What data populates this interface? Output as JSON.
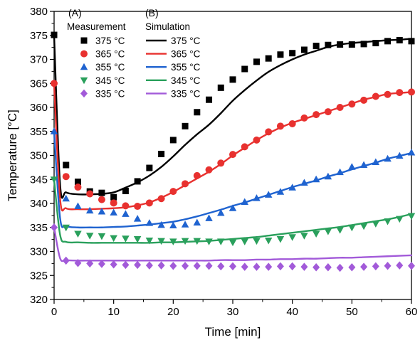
{
  "chart_data": {
    "type": "scatter",
    "xlabel": "Time [min]",
    "ylabel": "Temperature [°C]",
    "xlim": [
      0,
      60
    ],
    "ylim": [
      320,
      380
    ],
    "x_ticks": [
      0,
      10,
      20,
      30,
      40,
      50,
      60
    ],
    "y_ticks": [
      320,
      325,
      330,
      335,
      340,
      345,
      350,
      355,
      360,
      365,
      370,
      375,
      380
    ],
    "grid": false,
    "legend": {
      "placement": "top-left",
      "measurement_header": "Measurement",
      "simulation_header": "Simulation",
      "measurement_panel_label": "(A)",
      "simulation_panel_label": "(B)"
    },
    "series": [
      {
        "name": "375 °C",
        "color": "#000000",
        "marker": "square",
        "measurement": {
          "x": [
            0,
            2,
            4,
            6,
            8,
            10,
            12,
            14,
            16,
            18,
            20,
            22,
            24,
            26,
            28,
            30,
            32,
            34,
            36,
            38,
            40,
            42,
            44,
            46,
            48,
            50,
            52,
            54,
            56,
            58,
            60
          ],
          "y": [
            375.1,
            348,
            344.5,
            342.5,
            342.2,
            341.3,
            342.6,
            344.6,
            347.4,
            350.3,
            353.2,
            356.1,
            359,
            361.6,
            364.1,
            365.8,
            368,
            369.5,
            370.2,
            371,
            371.3,
            372,
            372.8,
            373,
            373.1,
            373.1,
            373.2,
            373.4,
            373.8,
            374,
            373.8
          ]
        },
        "simulation": {
          "x": [
            0,
            1,
            2,
            4,
            6,
            8,
            10,
            12,
            14,
            16,
            18,
            20,
            22,
            24,
            26,
            28,
            30,
            32,
            34,
            36,
            38,
            40,
            42,
            44,
            46,
            48,
            50,
            52,
            54,
            56,
            58,
            60
          ],
          "y": [
            375,
            344,
            342.3,
            341.9,
            341.9,
            342,
            342.3,
            343.3,
            344.4,
            345.8,
            347.6,
            349.8,
            352.2,
            354.4,
            356.4,
            358.8,
            361.4,
            363.6,
            365.6,
            367.4,
            368.8,
            370,
            371,
            371.8,
            372.6,
            373.1,
            373.4,
            373.6,
            373.8,
            374,
            374.1,
            374.3
          ]
        }
      },
      {
        "name": "365 °C",
        "color": "#e8312f",
        "marker": "circle",
        "measurement": {
          "x": [
            0,
            2,
            4,
            6,
            8,
            10,
            12,
            14,
            16,
            18,
            20,
            22,
            24,
            26,
            28,
            30,
            32,
            34,
            36,
            38,
            40,
            42,
            44,
            46,
            48,
            50,
            52,
            54,
            56,
            58,
            60
          ],
          "y": [
            365,
            345.6,
            343.4,
            342,
            340.8,
            340.1,
            339.5,
            339.4,
            340.1,
            341,
            342.5,
            344.1,
            345.8,
            347,
            348.4,
            350.2,
            351.8,
            353.2,
            354.9,
            356.1,
            356.6,
            357.8,
            358.5,
            359.1,
            360,
            360.7,
            361.5,
            362.3,
            362.7,
            363.1,
            363.2
          ]
        },
        "simulation": {
          "x": [
            0,
            1,
            2,
            4,
            6,
            8,
            10,
            12,
            14,
            16,
            18,
            20,
            22,
            24,
            26,
            28,
            30,
            32,
            34,
            36,
            38,
            40,
            42,
            44,
            46,
            48,
            50,
            52,
            54,
            56,
            58,
            60
          ],
          "y": [
            365,
            341,
            339,
            338.8,
            338.8,
            338.9,
            339,
            339.2,
            339.6,
            340.2,
            341.2,
            342.4,
            343.8,
            345.2,
            346.6,
            348.2,
            350,
            351.6,
            353.2,
            354.6,
            355.8,
            356.8,
            357.6,
            358.4,
            359.2,
            360,
            360.8,
            361.6,
            362.2,
            362.8,
            363,
            363.2
          ]
        }
      },
      {
        "name": "355 °C",
        "color": "#1f63d0",
        "marker": "triangle-up",
        "measurement": {
          "x": [
            0,
            2,
            4,
            6,
            8,
            10,
            12,
            14,
            16,
            18,
            20,
            22,
            24,
            26,
            28,
            30,
            32,
            34,
            36,
            38,
            40,
            42,
            44,
            46,
            48,
            50,
            52,
            54,
            56,
            58,
            60
          ],
          "y": [
            355,
            341,
            339.4,
            338.5,
            338.3,
            338.1,
            337.8,
            336.8,
            335.9,
            335.5,
            335.4,
            335.6,
            336,
            336.9,
            338,
            339,
            340.3,
            341.1,
            341.8,
            342.4,
            343.3,
            344.3,
            345,
            345.6,
            346.5,
            347.6,
            348,
            348.6,
            349.3,
            349.9,
            350.6
          ]
        },
        "simulation": {
          "x": [
            0,
            1,
            2,
            4,
            6,
            8,
            10,
            12,
            14,
            16,
            18,
            20,
            22,
            24,
            26,
            28,
            30,
            32,
            34,
            36,
            38,
            40,
            42,
            44,
            46,
            48,
            50,
            52,
            54,
            56,
            58,
            60
          ],
          "y": [
            355,
            337,
            335.3,
            335,
            335,
            335,
            335.1,
            335.2,
            335.4,
            335.6,
            335.9,
            336.2,
            336.7,
            337.3,
            338,
            338.7,
            339.5,
            340.2,
            341,
            341.8,
            342.6,
            343.4,
            344.1,
            344.8,
            345.6,
            346.3,
            347.1,
            347.8,
            348.5,
            349.3,
            349.9,
            350.5
          ]
        }
      },
      {
        "name": "345 °C",
        "color": "#2aa05c",
        "marker": "triangle-down",
        "measurement": {
          "x": [
            0,
            2,
            4,
            6,
            8,
            10,
            12,
            14,
            16,
            18,
            20,
            22,
            24,
            26,
            28,
            30,
            32,
            34,
            36,
            38,
            40,
            42,
            44,
            46,
            48,
            50,
            52,
            54,
            56,
            58,
            60
          ],
          "y": [
            345,
            335,
            333.7,
            333.3,
            333.2,
            332.8,
            332.7,
            332.6,
            332.3,
            332.2,
            332.1,
            332.2,
            332.2,
            332.1,
            332.1,
            331.9,
            332.1,
            332.2,
            332.3,
            332.6,
            333,
            333.3,
            333.7,
            334.2,
            334.5,
            335,
            335.3,
            335.8,
            336.3,
            336.8,
            337.4
          ]
        },
        "simulation": {
          "x": [
            0,
            1,
            2,
            4,
            6,
            8,
            10,
            12,
            14,
            16,
            18,
            20,
            22,
            24,
            26,
            28,
            30,
            32,
            34,
            36,
            38,
            40,
            42,
            44,
            46,
            48,
            50,
            52,
            54,
            56,
            58,
            60
          ],
          "y": [
            345,
            333.5,
            332,
            331.9,
            331.8,
            331.8,
            331.8,
            331.8,
            331.8,
            331.8,
            331.9,
            331.9,
            332,
            332.1,
            332.2,
            332.4,
            332.6,
            332.8,
            333,
            333.3,
            333.6,
            333.9,
            334.2,
            334.5,
            334.8,
            335.1,
            335.5,
            335.9,
            336.3,
            336.7,
            337.2,
            337.8
          ]
        }
      },
      {
        "name": "335 °C",
        "color": "#a25ad9",
        "marker": "diamond",
        "measurement": {
          "x": [
            0,
            2,
            4,
            6,
            8,
            10,
            12,
            14,
            16,
            18,
            20,
            22,
            24,
            26,
            28,
            30,
            32,
            34,
            36,
            38,
            40,
            42,
            44,
            46,
            48,
            50,
            52,
            54,
            56,
            58,
            60
          ],
          "y": [
            335,
            328.1,
            327.6,
            327.5,
            327.4,
            327.3,
            327.2,
            327.2,
            327.1,
            327.1,
            327,
            327,
            327,
            327,
            326.9,
            326.9,
            326.8,
            326.8,
            326.8,
            326.9,
            326.9,
            326.8,
            326.7,
            326.7,
            326.6,
            326.7,
            326.8,
            326.9,
            327,
            327.1,
            327
          ]
        },
        "simulation": {
          "x": [
            0,
            1,
            2,
            4,
            6,
            8,
            10,
            12,
            14,
            16,
            18,
            20,
            22,
            24,
            26,
            28,
            30,
            32,
            34,
            36,
            38,
            40,
            42,
            44,
            46,
            48,
            50,
            52,
            54,
            56,
            58,
            60
          ],
          "y": [
            335,
            328.6,
            328.2,
            328.1,
            328.1,
            328.1,
            328.1,
            328.1,
            328.1,
            328.1,
            328.1,
            328.1,
            328.1,
            328.1,
            328.1,
            328.2,
            328.2,
            328.2,
            328.3,
            328.3,
            328.4,
            328.4,
            328.5,
            328.5,
            328.6,
            328.7,
            328.7,
            328.8,
            328.9,
            329,
            329.1,
            329.2
          ]
        }
      }
    ]
  }
}
